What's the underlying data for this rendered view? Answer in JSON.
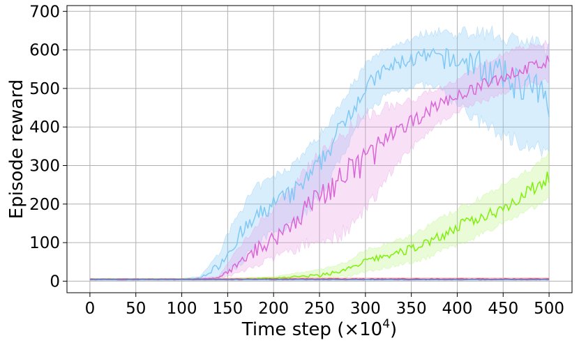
{
  "chart_data": {
    "type": "line",
    "title": "",
    "xlabel": "Time step (×10",
    "xlabel_sup": "4",
    "xlabel_close": ")",
    "ylabel": "Episode reward",
    "xlim": [
      -25,
      525
    ],
    "ylim": [
      -30,
      715
    ],
    "xticks": [
      0,
      50,
      100,
      150,
      200,
      250,
      300,
      350,
      400,
      450,
      500
    ],
    "yticks": [
      0,
      100,
      200,
      300,
      400,
      500,
      600,
      700
    ],
    "grid": true,
    "legend": "none",
    "series": [
      {
        "color": "#80c8f6",
        "band_color": "#80c8f6",
        "x": [
          0,
          50,
          100,
          120,
          140,
          160,
          180,
          200,
          220,
          240,
          260,
          280,
          300,
          320,
          340,
          360,
          380,
          400,
          420,
          440,
          460,
          480,
          500
        ],
        "y": [
          5,
          5,
          5,
          8,
          40,
          110,
          160,
          200,
          225,
          270,
          340,
          430,
          500,
          545,
          570,
          580,
          580,
          570,
          565,
          540,
          520,
          500,
          470
        ],
        "band_low": [
          3,
          3,
          3,
          5,
          10,
          40,
          90,
          130,
          150,
          190,
          260,
          350,
          430,
          480,
          500,
          510,
          500,
          460,
          420,
          390,
          370,
          350,
          330
        ],
        "band_high": [
          7,
          7,
          7,
          12,
          70,
          170,
          240,
          270,
          300,
          350,
          410,
          490,
          560,
          600,
          620,
          640,
          650,
          640,
          650,
          640,
          630,
          620,
          600
        ]
      },
      {
        "color": "#d966d6",
        "band_color": "#e89be6",
        "x": [
          0,
          50,
          100,
          120,
          140,
          160,
          180,
          200,
          220,
          240,
          260,
          280,
          300,
          320,
          340,
          360,
          380,
          400,
          420,
          440,
          460,
          480,
          500
        ],
        "y": [
          5,
          5,
          5,
          6,
          8,
          40,
          80,
          110,
          150,
          200,
          240,
          270,
          320,
          360,
          390,
          430,
          460,
          480,
          500,
          520,
          540,
          555,
          570
        ],
        "band_low": [
          3,
          3,
          3,
          4,
          5,
          20,
          40,
          60,
          80,
          100,
          110,
          130,
          180,
          260,
          320,
          370,
          410,
          440,
          460,
          480,
          500,
          510,
          520
        ],
        "band_high": [
          7,
          7,
          7,
          8,
          12,
          80,
          140,
          190,
          240,
          300,
          350,
          390,
          430,
          450,
          460,
          480,
          500,
          520,
          550,
          580,
          600,
          610,
          620
        ]
      },
      {
        "color": "#7ff00a",
        "band_color": "#b6f57c",
        "x": [
          0,
          50,
          100,
          150,
          200,
          250,
          280,
          300,
          320,
          340,
          360,
          380,
          400,
          420,
          440,
          460,
          480,
          500
        ],
        "y": [
          5,
          5,
          5,
          5,
          8,
          15,
          30,
          50,
          65,
          75,
          95,
          115,
          140,
          160,
          180,
          205,
          235,
          275
        ],
        "band_low": [
          3,
          3,
          3,
          3,
          4,
          6,
          12,
          25,
          35,
          45,
          55,
          75,
          95,
          115,
          140,
          165,
          190,
          210
        ],
        "band_high": [
          7,
          7,
          7,
          7,
          12,
          30,
          50,
          80,
          95,
          110,
          130,
          160,
          185,
          210,
          235,
          260,
          290,
          335
        ]
      },
      {
        "color": "#e05070",
        "band_color": "#f0a0b0",
        "x": [
          0,
          100,
          200,
          300,
          400,
          500
        ],
        "y": [
          5,
          5,
          6,
          6,
          6,
          6
        ],
        "band_low": [
          3,
          3,
          4,
          4,
          4,
          4
        ],
        "band_high": [
          7,
          7,
          9,
          9,
          9,
          9
        ]
      },
      {
        "color": "#5a8ad8",
        "band_color": "#a8c0ea",
        "x": [
          0,
          100,
          200,
          300,
          400,
          500
        ],
        "y": [
          4,
          4,
          4,
          4,
          4,
          4
        ],
        "band_low": [
          2,
          2,
          2,
          2,
          2,
          2
        ],
        "band_high": [
          6,
          6,
          6,
          6,
          6,
          6
        ]
      }
    ]
  }
}
